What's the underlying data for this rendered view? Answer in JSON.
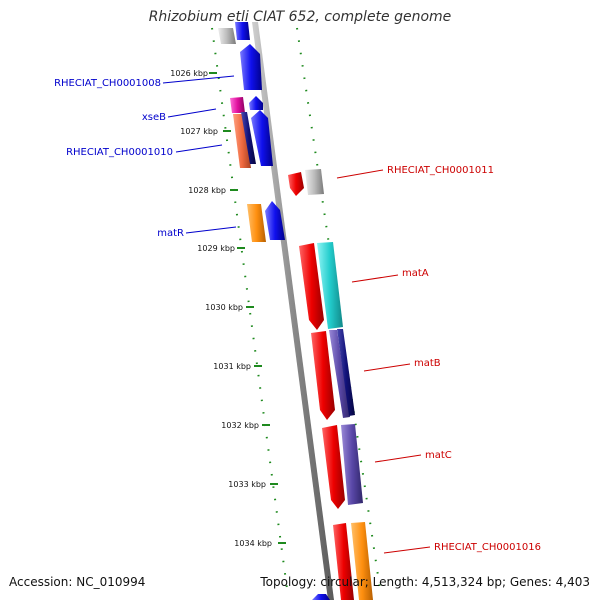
{
  "title": "Rhizobium etli CIAT 652, complete genome",
  "accession": "Accession: NC_010994",
  "topology": "Topology: circular; Length: 4,513,324 bp; Genes: 4,403",
  "colors": {
    "backbone": "#8c8c8c",
    "dots": "#1e8a1e",
    "left_label": "#0000cc",
    "right_label": "#cc0000"
  },
  "kbp_ticks": [
    "1026 kbp",
    "1027 kbp",
    "1028 kbp",
    "1029 kbp",
    "1030 kbp",
    "1031 kbp",
    "1032 kbp",
    "1033 kbp",
    "1034 kbp"
  ],
  "left_labels": [
    "RHECIAT_CH0001008",
    "xseB",
    "RHECIAT_CH0001010",
    "matR"
  ],
  "right_labels": [
    "RHECIAT_CH0001011",
    "matA",
    "matB",
    "matC",
    "RHECIAT_CH0001016"
  ]
}
